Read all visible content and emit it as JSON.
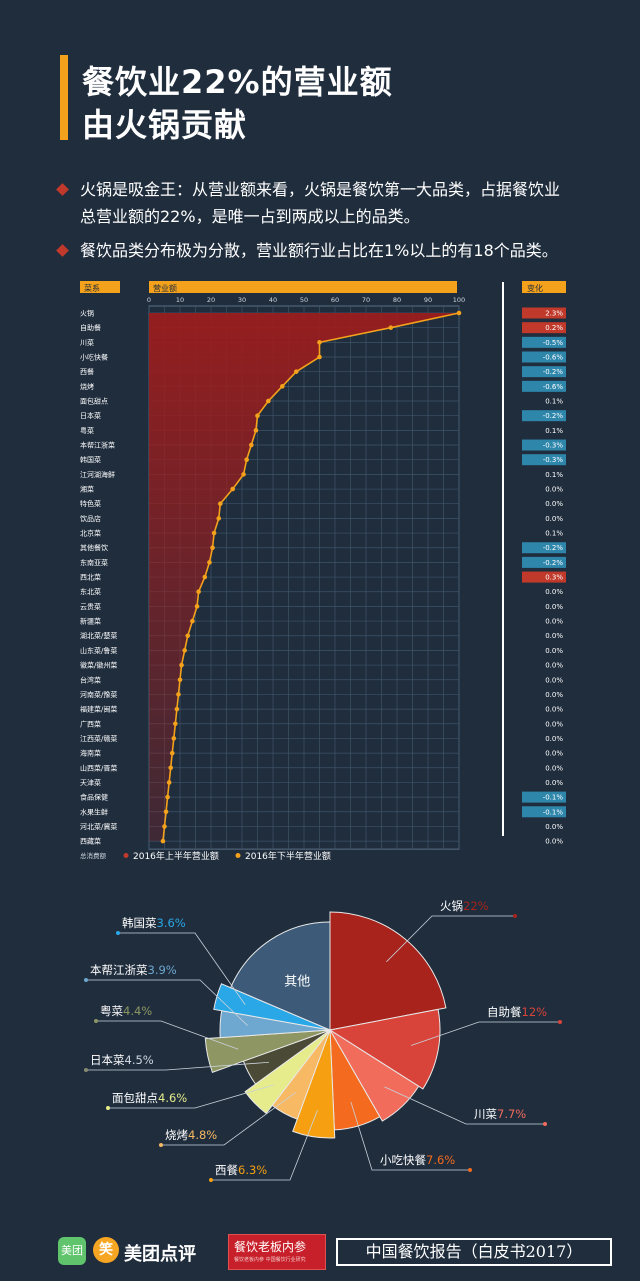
{
  "title": {
    "line1": "餐饮业22%的营业额",
    "line2": "由火锅贡献"
  },
  "bullets": [
    {
      "line1": "火锅是吸金王：从营业额来看，火锅是餐饮第一大品类，占据餐饮业",
      "line2": "总营业额的22%，是唯一占到两成以上的品类。"
    },
    {
      "line1": "餐饮品类分布极为分散，营业额行业占比在1%以上的有18个品类。"
    }
  ],
  "colors": {
    "bg": "#1f2d3d",
    "accent": "#f4a11b",
    "h1": "#9b1d1d",
    "h2": "#f4a11b",
    "pos": "#c0392b",
    "neg": "#2e86ab"
  },
  "chart_data": [
    {
      "type": "area",
      "header_left": "菜系",
      "header_mid": "营业额",
      "header_right": "变化",
      "xticks": [
        "0",
        "10",
        "20",
        "30",
        "40",
        "50",
        "60",
        "70",
        "80",
        "90",
        "100"
      ],
      "xlim": [
        0,
        100
      ],
      "legend_prefix": "总消费额",
      "categories": [
        "火锅",
        "自助餐",
        "川菜",
        "小吃快餐",
        "西餐",
        "烧烤",
        "面包甜点",
        "日本菜",
        "粤菜",
        "本帮江浙菜",
        "韩国菜",
        "江河湖海鲜",
        "湘菜",
        "特色菜",
        "饮品店",
        "北京菜",
        "其他餐饮",
        "东南亚菜",
        "西北菜",
        "东北菜",
        "云贵菜",
        "新疆菜",
        "湖北菜/楚菜",
        "山东菜/鲁菜",
        "徽菜/徽州菜",
        "台湾菜",
        "河南菜/豫菜",
        "福建菜/闽菜",
        "广西菜",
        "江西菜/赣菜",
        "海南菜",
        "山西菜/晋菜",
        "天津菜",
        "食品保健",
        "水果生鲜",
        "河北菜/冀菜",
        "西藏菜"
      ],
      "series": [
        {
          "name": "2016年上半年营业额",
          "values": [
            100,
            78,
            55,
            55,
            47.5,
            43,
            38.5,
            35,
            34.5,
            33,
            31.5,
            30.5,
            27,
            23,
            22.5,
            21,
            20.5,
            19.5,
            18,
            16,
            15.5,
            14,
            12.5,
            11.5,
            10.5,
            10,
            9.5,
            9,
            8.5,
            8,
            7.5,
            7,
            6.5,
            6,
            5.5,
            5,
            4.5
          ]
        },
        {
          "name": "2016年下半年营业额",
          "values": [
            100,
            78,
            55,
            55,
            47.5,
            43,
            38.5,
            35,
            34.5,
            33,
            31.5,
            30.5,
            27,
            23,
            22.5,
            21,
            20.5,
            19.5,
            18,
            16,
            15.5,
            14,
            12.5,
            11.5,
            10.5,
            10,
            9.5,
            9,
            8.5,
            8,
            7.5,
            7,
            6.5,
            6,
            5.5,
            5,
            4.5
          ]
        }
      ],
      "changes": [
        "2.3%",
        "0.2%",
        "-0.5%",
        "-0.6%",
        "-0.2%",
        "-0.6%",
        "0.1%",
        "-0.2%",
        "0.1%",
        "-0.3%",
        "-0.3%",
        "0.1%",
        "0.0%",
        "0.0%",
        "0.0%",
        "0.1%",
        "-0.2%",
        "-0.2%",
        "0.3%",
        "0.0%",
        "0.0%",
        "0.0%",
        "0.0%",
        "0.0%",
        "0.0%",
        "0.0%",
        "0.0%",
        "0.0%",
        "0.0%",
        "0.0%",
        "0.0%",
        "0.0%",
        "0.0%",
        "-0.1%",
        "-0.1%",
        "0.0%",
        "0.0%"
      ],
      "grid": true
    },
    {
      "type": "pie",
      "center_label": "其他",
      "slices": [
        {
          "name": "火锅",
          "value": 22,
          "label": "22%",
          "color": "#a7231b"
        },
        {
          "name": "自助餐",
          "value": 12,
          "label": "12%",
          "color": "#d9443a"
        },
        {
          "name": "川菜",
          "value": 7.7,
          "label": "7.7%",
          "color": "#f26c5b"
        },
        {
          "name": "小吃快餐",
          "value": 7.6,
          "label": "7.6%",
          "color": "#f46a1e"
        },
        {
          "name": "西餐",
          "value": 6.3,
          "label": "6.3%",
          "color": "#f6a011"
        },
        {
          "name": "烧烤",
          "value": 4.8,
          "label": "4.8%",
          "color": "#f7b963"
        },
        {
          "name": "面包甜点",
          "value": 4.6,
          "label": "4.6%",
          "color": "#e6ec8c"
        },
        {
          "name": "日本菜",
          "value": 4.5,
          "label": "4.5%",
          "color": "#4b4a36"
        },
        {
          "name": "粤菜",
          "value": 4.4,
          "label": "4.4%",
          "color": "#8e9764"
        },
        {
          "name": "本帮江浙菜",
          "value": 3.9,
          "label": "3.9%",
          "color": "#6ea7cf"
        },
        {
          "name": "韩国菜",
          "value": 3.6,
          "label": "3.6%",
          "color": "#2aa7e6"
        },
        {
          "name": "其他",
          "value": 18.6,
          "label": "",
          "color": "#3d5a78"
        }
      ]
    }
  ],
  "footer": {
    "logo1": "美团",
    "logo2_icon": "笑",
    "brand": "美团点评",
    "partner": "餐饮老板内参",
    "partner_sub": "餐饮老板内参 中国餐饮行业研究",
    "report": "中国餐饮报告（白皮书2017）"
  }
}
